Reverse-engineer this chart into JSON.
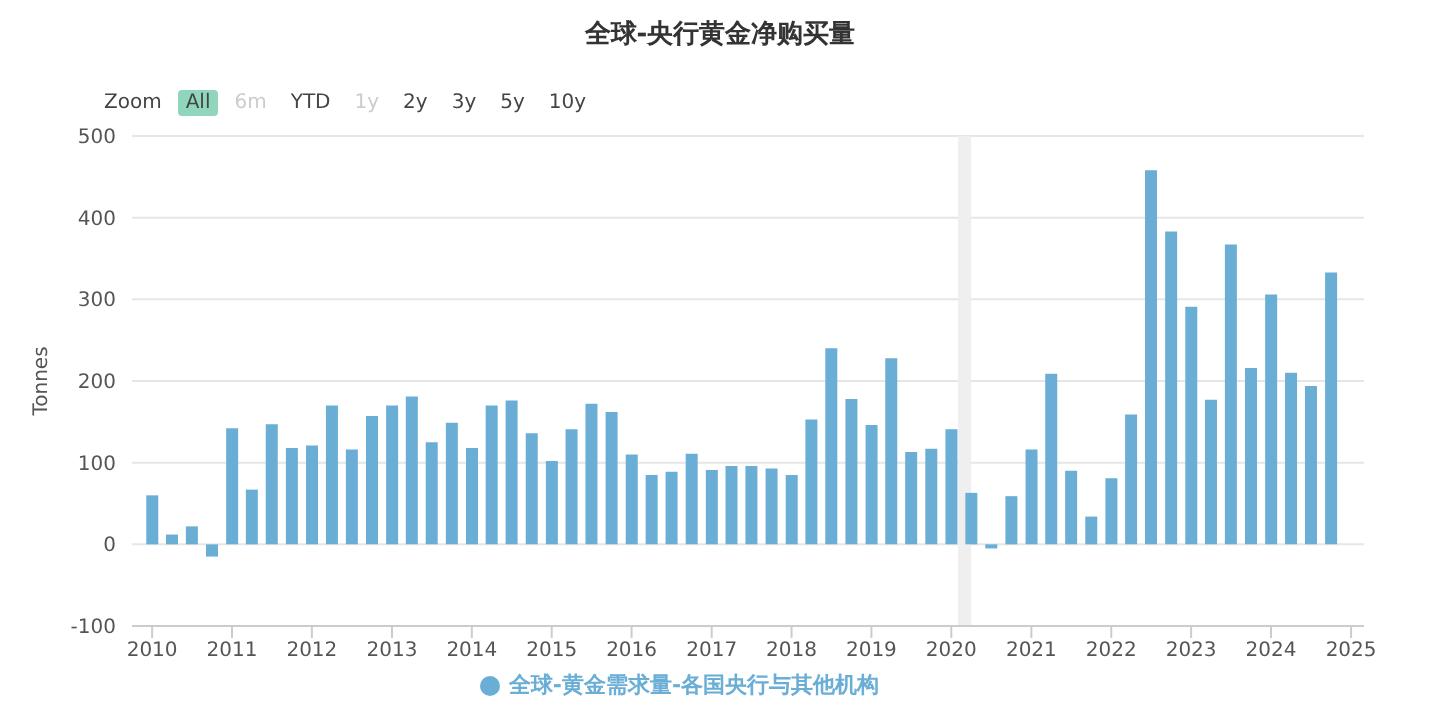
{
  "chart_data": {
    "type": "bar",
    "title": "全球-央行黄金净购买量",
    "ylabel": "Tonnes",
    "annotations": [
      "Zoom",
      "All",
      "6m",
      "YTD",
      "1y",
      "2y",
      "3y",
      "5y",
      "10y"
    ],
    "x": [
      "2010-01",
      "2010-04",
      "2010-07",
      "2010-10",
      "2011-01",
      "2011-04",
      "2011-07",
      "2011-10",
      "2012-01",
      "2012-04",
      "2012-07",
      "2012-10",
      "2013-01",
      "2013-04",
      "2013-07",
      "2013-10",
      "2014-01",
      "2014-04",
      "2014-07",
      "2014-10",
      "2015-01",
      "2015-04",
      "2015-07",
      "2015-10",
      "2016-01",
      "2016-04",
      "2016-07",
      "2016-10",
      "2017-01",
      "2017-04",
      "2017-07",
      "2017-10",
      "2018-01",
      "2018-04",
      "2018-07",
      "2018-10",
      "2019-01",
      "2019-04",
      "2019-07",
      "2019-10",
      "2020-01",
      "2020-04",
      "2020-07",
      "2020-10",
      "2021-01",
      "2021-04",
      "2021-07",
      "2021-10",
      "2022-01",
      "2022-04",
      "2022-07",
      "2022-10",
      "2023-01",
      "2023-04",
      "2023-07",
      "2023-10",
      "2024-01",
      "2024-04",
      "2024-07",
      "2024-10"
    ],
    "series": [
      {
        "name": "全球-黄金需求量-各国央行与其他机构",
        "color": "#6aaed6",
        "values": [
          60,
          12,
          22,
          -15,
          142,
          67,
          147,
          118,
          121,
          170,
          116,
          157,
          170,
          181,
          125,
          149,
          118,
          170,
          176,
          136,
          102,
          141,
          172,
          162,
          110,
          85,
          89,
          111,
          91,
          96,
          96,
          93,
          85,
          153,
          240,
          178,
          146,
          228,
          113,
          117,
          141,
          63,
          -5,
          59,
          116,
          209,
          90,
          34,
          81,
          159,
          458,
          383,
          291,
          177,
          367,
          216,
          306,
          210,
          194,
          333
        ]
      }
    ],
    "xlim": [
      "2009-10",
      "2025-03"
    ],
    "xticks": [
      {
        "value": "2010",
        "label": "2010"
      },
      {
        "value": "2011",
        "label": "2011"
      },
      {
        "value": "2012",
        "label": "2012"
      },
      {
        "value": "2013",
        "label": "2013"
      },
      {
        "value": "2014",
        "label": "2014"
      },
      {
        "value": "2015",
        "label": "2015"
      },
      {
        "value": "2016",
        "label": "2016"
      },
      {
        "value": "2017",
        "label": "2017"
      },
      {
        "value": "2018",
        "label": "2018"
      },
      {
        "value": "2019",
        "label": "2019"
      },
      {
        "value": "2020",
        "label": "2020"
      },
      {
        "value": "2021",
        "label": "2021"
      },
      {
        "value": "2022",
        "label": "2022"
      },
      {
        "value": "2023",
        "label": "2023"
      },
      {
        "value": "2024",
        "label": "2024"
      },
      {
        "value": "2025",
        "label": "2025"
      }
    ],
    "ylim": [
      -100,
      500
    ],
    "yticks": [
      -100,
      0,
      100,
      200,
      300,
      400,
      500
    ],
    "bands": [
      {
        "axis": "x",
        "from": "2020-02",
        "to": "2020-04",
        "color": "#efefef"
      }
    ],
    "grid": "y",
    "legend": "bottom"
  }
}
